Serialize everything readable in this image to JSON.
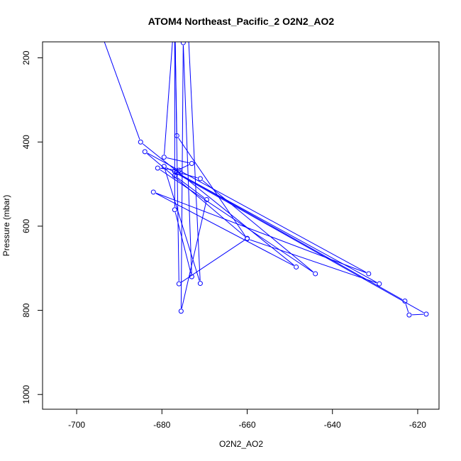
{
  "chart_data": {
    "type": "line",
    "title": "ATOM4 Northeast_Pacific_2 O2N2_AO2",
    "xlabel": "O2N2_AO2",
    "ylabel": "Pressure (mbar)",
    "xlim": [
      -708,
      -615
    ],
    "ylim": [
      1035,
      162
    ],
    "y_reversed": true,
    "xticks": [
      -700,
      -680,
      -660,
      -640,
      -620
    ],
    "xtick_labels": [
      "-700",
      "-680",
      "-660",
      "-640",
      "-620"
    ],
    "yticks": [
      200,
      400,
      600,
      800,
      1000
    ],
    "ytick_labels": [
      "200",
      "400",
      "600",
      "800",
      "1000"
    ],
    "grid": false,
    "series_color": "#0000ff",
    "series": [
      {
        "points": [
          [
            -695,
            120
          ],
          [
            -685,
            400
          ],
          [
            -648.5,
            697
          ],
          [
            -682,
            519
          ],
          [
            -631.5,
            713
          ],
          [
            -684,
            423
          ],
          [
            -660,
            629
          ],
          [
            -676,
            737
          ],
          [
            -677,
            90
          ],
          [
            -679.5,
            436
          ],
          [
            -673,
            451
          ],
          [
            -677,
            470
          ],
          [
            -671,
            487
          ],
          [
            -644,
            713
          ],
          [
            -681,
            462
          ],
          [
            -676,
            467
          ],
          [
            -677,
            480
          ],
          [
            -669.5,
            537
          ],
          [
            -675.5,
            802
          ],
          [
            -675,
            164
          ],
          [
            -673,
            720
          ],
          [
            -677,
            561
          ],
          [
            -677,
            90
          ],
          [
            -676.5,
            385
          ],
          [
            -660,
            630
          ],
          [
            -629,
            737
          ],
          [
            -676.5,
            473
          ],
          [
            -623,
            778
          ],
          [
            -622,
            811
          ],
          [
            -618,
            809
          ],
          [
            -679.5,
            458
          ],
          [
            -671,
            736
          ],
          [
            -674,
            100
          ],
          [
            -698,
            110
          ]
        ]
      }
    ]
  }
}
